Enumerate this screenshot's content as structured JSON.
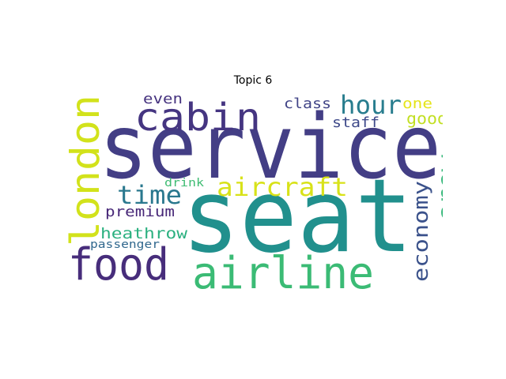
{
  "title": "Topic 6",
  "words": [
    {
      "text": "seat",
      "color": "#21908d"
    },
    {
      "text": "service",
      "color": "#433e85"
    },
    {
      "text": "airline",
      "color": "#3bbb75"
    },
    {
      "text": "food",
      "color": "#472d7b"
    },
    {
      "text": "cabin",
      "color": "#453581"
    },
    {
      "text": "london",
      "color": "#d2e21b"
    },
    {
      "text": "aircraft",
      "color": "#d8e219"
    },
    {
      "text": "hour",
      "color": "#287d8e"
    },
    {
      "text": "time",
      "color": "#2a788e"
    },
    {
      "text": "economy",
      "color": "#3b528b"
    },
    {
      "text": "crew",
      "color": "#35b779"
    },
    {
      "text": "heathrow",
      "color": "#2ab07f"
    },
    {
      "text": "premium",
      "color": "#482878"
    },
    {
      "text": "good",
      "color": "#c2df23"
    },
    {
      "text": "class",
      "color": "#414487"
    },
    {
      "text": "staff",
      "color": "#3e4989"
    },
    {
      "text": "even",
      "color": "#46337f"
    },
    {
      "text": "one",
      "color": "#e5e419"
    },
    {
      "text": "drink",
      "color": "#3fbc73"
    },
    {
      "text": "passenger",
      "color": "#31688e"
    }
  ]
}
